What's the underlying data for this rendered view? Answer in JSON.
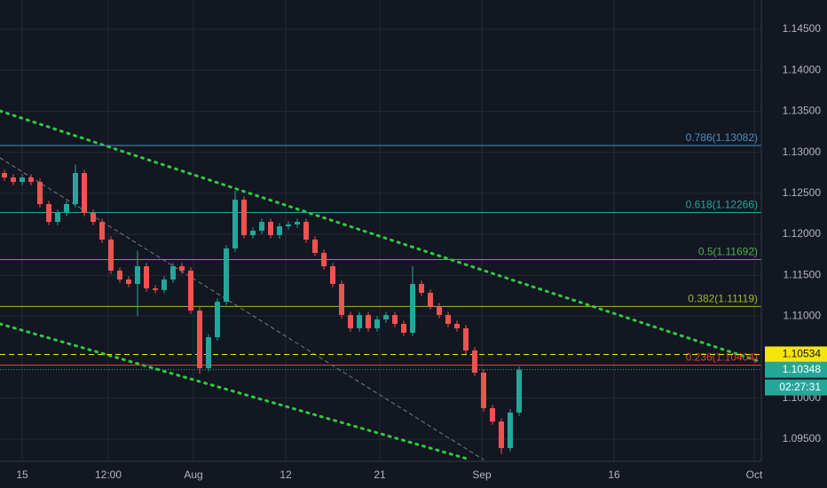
{
  "chart_data": {
    "type": "candlestick",
    "background": "#131722",
    "up_color": "#26a69a",
    "down_color": "#ef5350",
    "grid": true,
    "xlim": [
      -0.5,
      85.3
    ],
    "xticks": [
      {
        "value": 2,
        "label": "15"
      },
      {
        "value": 11.7,
        "label": "12:00"
      },
      {
        "value": 21.3,
        "label": "Aug"
      },
      {
        "value": 31.7,
        "label": "12"
      },
      {
        "value": 42.3,
        "label": "21"
      },
      {
        "value": 53.8,
        "label": "Sep"
      },
      {
        "value": 68.7,
        "label": "16"
      },
      {
        "value": 84.5,
        "label": "Oct"
      }
    ],
    "ylim": [
      1.0923,
      1.14857
    ],
    "yticks": [
      {
        "value": 1.145,
        "label": "1.14500"
      },
      {
        "value": 1.14,
        "label": "1.14000"
      },
      {
        "value": 1.135,
        "label": "1.13500"
      },
      {
        "value": 1.13,
        "label": "1.13000"
      },
      {
        "value": 1.125,
        "label": "1.12500"
      },
      {
        "value": 1.12,
        "label": "1.12000"
      },
      {
        "value": 1.115,
        "label": "1.11500"
      },
      {
        "value": 1.11,
        "label": "1.11000"
      },
      {
        "value": 1.1,
        "label": "1.10000"
      },
      {
        "value": 1.095,
        "label": "1.09500"
      }
    ],
    "open": [
      1.12747,
      1.12692,
      1.12638,
      1.12692,
      1.12638,
      1.12368,
      1.12151,
      1.1226,
      1.12368,
      1.12747,
      1.1226,
      1.12151,
      1.11935,
      1.11556,
      1.11448,
      1.11394,
      1.1161,
      1.1134,
      1.1132,
      1.11448,
      1.1161,
      1.11556,
      1.11069,
      1.10366,
      1.10744,
      1.11177,
      1.11827,
      1.12422,
      1.11989,
      1.12043,
      1.12151,
      1.11989,
      1.12097,
      1.1212,
      1.12151,
      1.11935,
      1.11773,
      1.1161,
      1.11394,
      1.11015,
      1.10853,
      1.11015,
      1.10853,
      1.10961,
      1.11015,
      1.10907,
      1.10799,
      1.11394,
      1.11286,
      1.11123,
      1.11015,
      1.10907,
      1.10853,
      1.10582,
      1.10312,
      1.09879,
      1.09716,
      1.09392,
      1.09825
    ],
    "high": [
      1.12787,
      1.12732,
      1.12732,
      1.12732,
      1.12678,
      1.12408,
      1.123,
      1.12408,
      1.1285,
      1.12787,
      1.123,
      1.12191,
      1.11975,
      1.11596,
      1.11488,
      1.118,
      1.1165,
      1.1138,
      1.11488,
      1.1165,
      1.1165,
      1.11596,
      1.11109,
      1.10784,
      1.11217,
      1.11867,
      1.1253,
      1.12462,
      1.12083,
      1.12191,
      1.12191,
      1.12137,
      1.1216,
      1.12191,
      1.12191,
      1.11975,
      1.11813,
      1.1165,
      1.11434,
      1.11055,
      1.11055,
      1.11055,
      1.11001,
      1.11055,
      1.11055,
      1.10947,
      1.1161,
      1.11434,
      1.11326,
      1.11163,
      1.11055,
      1.10947,
      1.10893,
      1.10622,
      1.10352,
      1.09919,
      1.09756,
      1.09865,
      1.10388
    ],
    "low": [
      1.12652,
      1.12598,
      1.12598,
      1.12598,
      1.12328,
      1.12111,
      1.12111,
      1.1222,
      1.12328,
      1.1222,
      1.12111,
      1.11895,
      1.11516,
      1.11408,
      1.11354,
      1.11,
      1.113,
      1.1128,
      1.1128,
      1.11408,
      1.11516,
      1.11029,
      1.103,
      1.10326,
      1.10704,
      1.11137,
      1.11787,
      1.11949,
      1.11949,
      1.12003,
      1.11949,
      1.11949,
      1.12057,
      1.1208,
      1.11895,
      1.11733,
      1.1157,
      1.11354,
      1.10975,
      1.10813,
      1.10813,
      1.10813,
      1.10813,
      1.10921,
      1.10867,
      1.10759,
      1.10759,
      1.11246,
      1.11083,
      1.10975,
      1.10867,
      1.10813,
      1.10542,
      1.10272,
      1.09839,
      1.09676,
      1.0932,
      1.09352,
      1.09785
    ],
    "close": [
      1.12692,
      1.12638,
      1.12692,
      1.12638,
      1.12368,
      1.12151,
      1.1226,
      1.12368,
      1.12747,
      1.1226,
      1.12151,
      1.11935,
      1.11556,
      1.11448,
      1.11394,
      1.1161,
      1.1134,
      1.1132,
      1.11448,
      1.1161,
      1.11556,
      1.11069,
      1.10366,
      1.10744,
      1.11177,
      1.11827,
      1.12422,
      1.11989,
      1.12043,
      1.12151,
      1.11989,
      1.12097,
      1.1212,
      1.12151,
      1.11935,
      1.11773,
      1.1161,
      1.11394,
      1.11015,
      1.10853,
      1.11015,
      1.10853,
      1.10961,
      1.11015,
      1.10907,
      1.10799,
      1.11394,
      1.11286,
      1.11123,
      1.11015,
      1.10907,
      1.10853,
      1.10582,
      1.10312,
      1.09879,
      1.09716,
      1.09392,
      1.09825,
      1.10348
    ],
    "fib_levels": [
      {
        "label": "0.786(1.13082)",
        "price": 1.13082,
        "color": "#4a90c4"
      },
      {
        "label": "0.618(1.12266)",
        "price": 1.12266,
        "color": "#26a69a"
      },
      {
        "label": "0.5(1.11692)",
        "price": 1.11692,
        "color": "#4caf50"
      },
      {
        "label": "0.382(1.11119)",
        "price": 1.11119,
        "color": "#a6b13a"
      },
      {
        "label": "0.236(1.10404)",
        "price": 1.10404,
        "color": "#e04040"
      }
    ],
    "trendlines": [
      {
        "x": [
          -0.5,
          85.3
        ],
        "y": [
          1.13504,
          1.10441
        ],
        "color": "#2ecc40",
        "style": "dotted"
      },
      {
        "x": [
          -0.5,
          52.5
        ],
        "y": [
          1.10907,
          1.09251
        ],
        "color": "#2ecc40",
        "style": "dotted"
      },
      {
        "x": [
          -0.5,
          54
        ],
        "y": [
          1.12931,
          1.09251
        ],
        "color": "#787b86",
        "style": "dashed"
      }
    ],
    "alert_line": {
      "price": 1.10534,
      "label": "1.10534",
      "color": "#f5e50a"
    },
    "last_price": {
      "price": 1.10348,
      "label": "1.10348",
      "countdown": "02:27:31",
      "color": "#26a69a"
    }
  }
}
